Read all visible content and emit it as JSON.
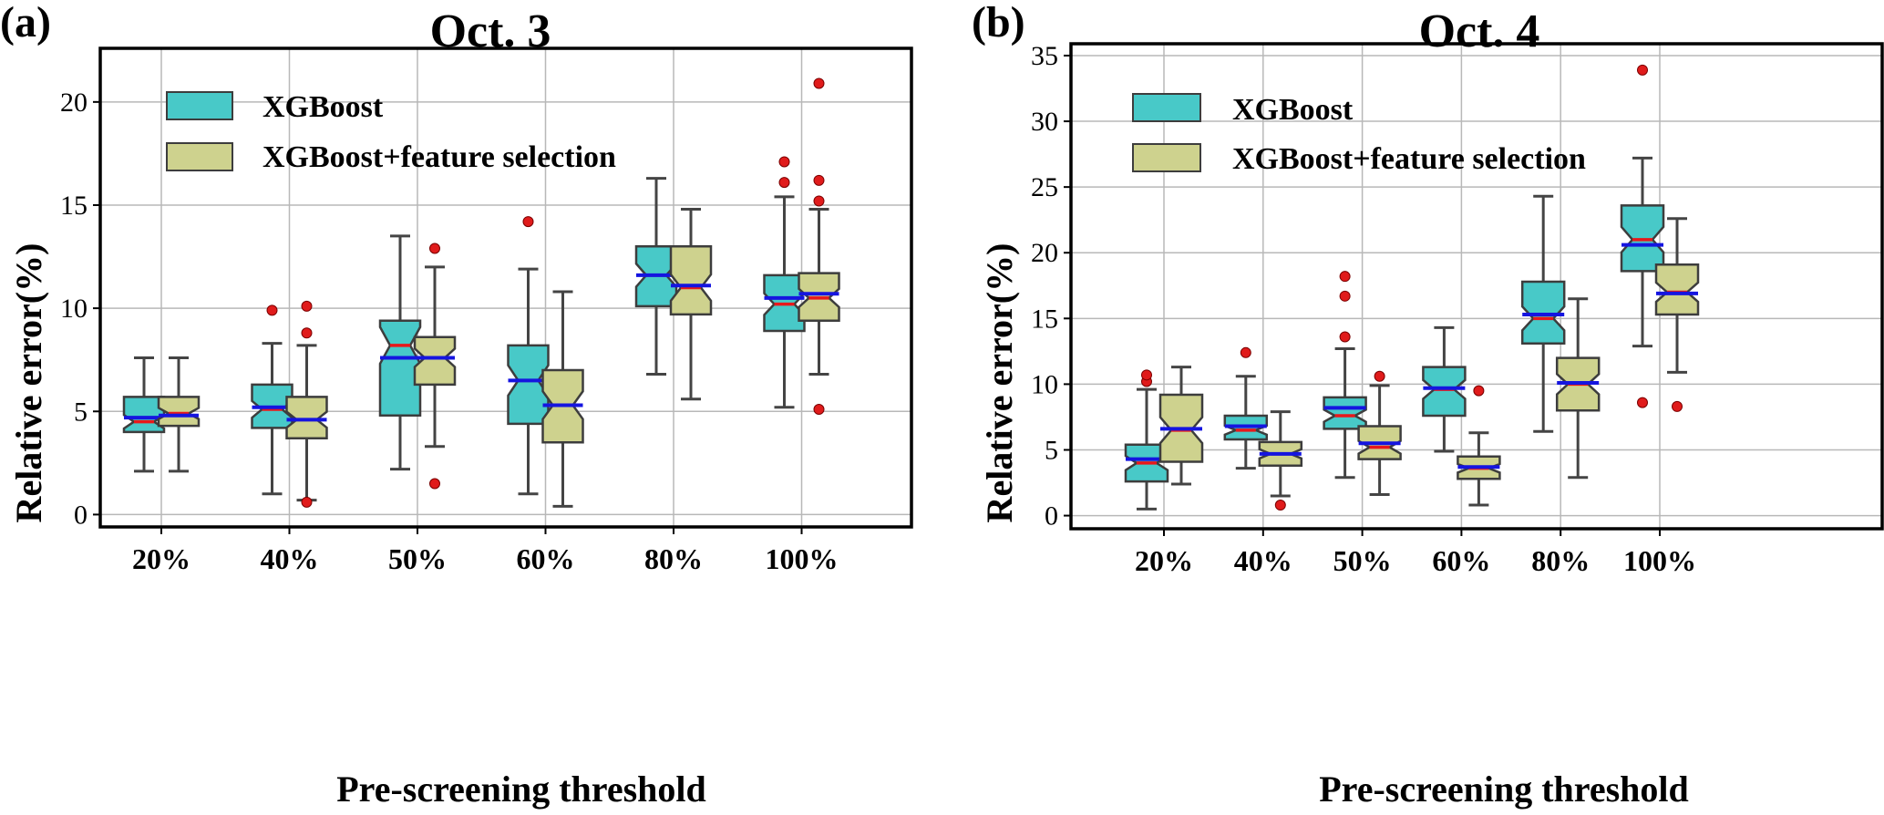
{
  "colors": {
    "xgboost": "#48C9C8",
    "fs": "#CED28E",
    "box_edge": "#3d3d3d",
    "whisker": "#444444",
    "median": "#E8181B",
    "mean": "#1515E0",
    "outlier": "#E01B1B",
    "grid": "#b8b8b8"
  },
  "chart_data": [
    {
      "type": "box",
      "panel_label": "(a)",
      "title": "Oct. 3",
      "xlabel": "Pre-screening threshold",
      "ylabel": "Relative error(%)",
      "ylim": [
        -0.6,
        22.6
      ],
      "yticks": [
        0,
        5,
        10,
        15,
        20
      ],
      "categories": [
        "20%",
        "40%",
        "50%",
        "60%",
        "80%",
        "100%"
      ],
      "legend": {
        "position": "upper-left",
        "entries": [
          "XGBoost",
          "XGBoost+feature selection"
        ]
      },
      "series": [
        {
          "name": "XGBoost",
          "boxes": [
            {
              "min": 2.1,
              "q1": 4.0,
              "median": 4.5,
              "q3": 5.7,
              "max": 7.6,
              "mean": 4.7,
              "outliers": []
            },
            {
              "min": 1.0,
              "q1": 4.2,
              "median": 5.1,
              "q3": 6.3,
              "max": 8.3,
              "mean": 5.2,
              "outliers": [
                9.9
              ]
            },
            {
              "min": 2.2,
              "q1": 4.8,
              "median": 8.2,
              "q3": 9.4,
              "max": 13.5,
              "mean": 7.6,
              "outliers": []
            },
            {
              "min": 1.0,
              "q1": 4.4,
              "median": 6.5,
              "q3": 8.2,
              "max": 11.9,
              "mean": 6.5,
              "outliers": [
                14.2
              ]
            },
            {
              "min": 6.8,
              "q1": 10.1,
              "median": 11.6,
              "q3": 13.0,
              "max": 16.3,
              "mean": 11.6,
              "outliers": []
            },
            {
              "min": 5.2,
              "q1": 8.9,
              "median": 10.2,
              "q3": 11.6,
              "max": 15.4,
              "mean": 10.5,
              "outliers": [
                16.1,
                17.1
              ]
            }
          ]
        },
        {
          "name": "XGBoost+feature selection",
          "boxes": [
            {
              "min": 2.1,
              "q1": 4.3,
              "median": 4.9,
              "q3": 5.7,
              "max": 7.6,
              "mean": 4.8,
              "outliers": []
            },
            {
              "min": 0.7,
              "q1": 3.7,
              "median": 4.6,
              "q3": 5.7,
              "max": 8.2,
              "mean": 4.6,
              "outliers": [
                0.6,
                8.8,
                10.1
              ]
            },
            {
              "min": 3.3,
              "q1": 6.3,
              "median": 7.6,
              "q3": 8.6,
              "max": 12.0,
              "mean": 7.6,
              "outliers": [
                1.5,
                12.9
              ]
            },
            {
              "min": 0.4,
              "q1": 3.5,
              "median": 5.3,
              "q3": 7.0,
              "max": 10.8,
              "mean": 5.3,
              "outliers": []
            },
            {
              "min": 5.6,
              "q1": 9.7,
              "median": 11.0,
              "q3": 13.0,
              "max": 14.8,
              "mean": 11.1,
              "outliers": []
            },
            {
              "min": 6.8,
              "q1": 9.4,
              "median": 10.5,
              "q3": 11.7,
              "max": 14.8,
              "mean": 10.7,
              "outliers": [
                5.1,
                15.2,
                16.2,
                20.9
              ]
            }
          ]
        }
      ]
    },
    {
      "type": "box",
      "panel_label": "(b)",
      "title": "Oct. 4",
      "xlabel": "Pre-screening threshold",
      "ylabel": "Relative error(%)",
      "ylim": [
        -1.0,
        35.9
      ],
      "yticks": [
        0,
        5,
        10,
        15,
        20,
        25,
        30,
        35
      ],
      "categories": [
        "20%",
        "40%",
        "50%",
        "60%",
        "80%",
        "100%"
      ],
      "legend": {
        "position": "upper-left",
        "entries": [
          "XGBoost",
          "XGBoost+feature selection"
        ]
      },
      "series": [
        {
          "name": "XGBoost",
          "boxes": [
            {
              "min": 0.5,
              "q1": 2.6,
              "median": 4.0,
              "q3": 5.4,
              "max": 9.6,
              "mean": 4.3,
              "outliers": [
                10.2,
                10.7
              ]
            },
            {
              "min": 3.6,
              "q1": 5.8,
              "median": 6.5,
              "q3": 7.6,
              "max": 10.6,
              "mean": 6.8,
              "outliers": [
                12.4
              ]
            },
            {
              "min": 2.9,
              "q1": 6.6,
              "median": 7.6,
              "q3": 9.0,
              "max": 12.7,
              "mean": 8.2,
              "outliers": [
                13.6,
                16.7,
                18.2
              ]
            },
            {
              "min": 4.9,
              "q1": 7.6,
              "median": 9.6,
              "q3": 11.3,
              "max": 14.3,
              "mean": 9.7,
              "outliers": []
            },
            {
              "min": 6.4,
              "q1": 13.1,
              "median": 15.0,
              "q3": 17.8,
              "max": 24.3,
              "mean": 15.3,
              "outliers": []
            },
            {
              "min": 12.9,
              "q1": 18.6,
              "median": 21.0,
              "q3": 23.6,
              "max": 27.2,
              "mean": 20.6,
              "outliers": [
                8.6,
                33.9
              ]
            }
          ]
        },
        {
          "name": "XGBoost+feature selection",
          "boxes": [
            {
              "min": 2.4,
              "q1": 4.1,
              "median": 6.5,
              "q3": 9.2,
              "max": 11.3,
              "mean": 6.6,
              "outliers": []
            },
            {
              "min": 1.5,
              "q1": 3.8,
              "median": 4.7,
              "q3": 5.6,
              "max": 7.9,
              "mean": 4.7,
              "outliers": [
                0.8
              ]
            },
            {
              "min": 1.6,
              "q1": 4.3,
              "median": 5.2,
              "q3": 6.8,
              "max": 9.9,
              "mean": 5.5,
              "outliers": [
                10.6
              ]
            },
            {
              "min": 0.8,
              "q1": 2.8,
              "median": 3.6,
              "q3": 4.5,
              "max": 6.3,
              "mean": 3.7,
              "outliers": [
                9.5
              ]
            },
            {
              "min": 2.9,
              "q1": 8.0,
              "median": 10.0,
              "q3": 12.0,
              "max": 16.5,
              "mean": 10.1,
              "outliers": []
            },
            {
              "min": 10.9,
              "q1": 15.3,
              "median": 17.0,
              "q3": 19.1,
              "max": 22.6,
              "mean": 16.9,
              "outliers": [
                8.3
              ]
            }
          ]
        }
      ]
    }
  ]
}
